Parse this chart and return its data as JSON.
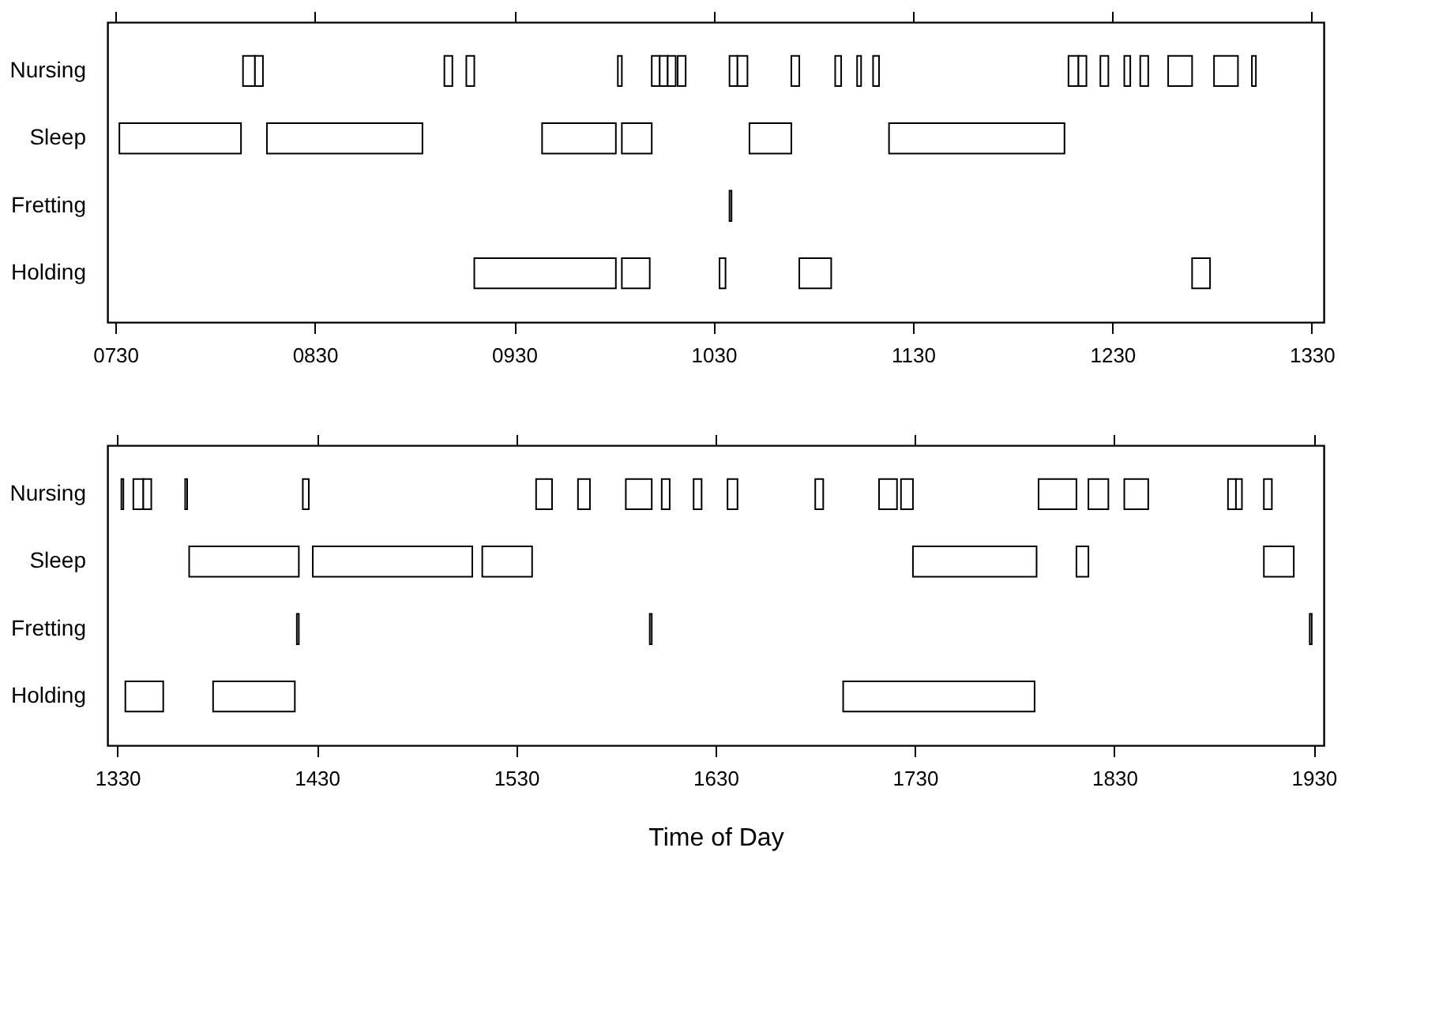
{
  "chart_data": [
    {
      "type": "bar",
      "orientation": "horizontal",
      "categories": [
        "Nursing",
        "Sleep",
        "Fretting",
        "Holding"
      ],
      "xlim": [
        726,
        1336
      ],
      "xticks": [
        {
          "value": 730,
          "label": "0730"
        },
        {
          "value": 830,
          "label": "0830"
        },
        {
          "value": 930,
          "label": "0930"
        },
        1030,
        1130,
        1230,
        1330
      ],
      "series": [
        {
          "color": "#ffffff",
          "base": [
            794,
            732,
            1038,
            910
          ],
          "values": [
            6,
            61,
            1,
            71
          ]
        },
        {
          "color": "#ffffff",
          "base": [
            800,
            806,
            null,
            984
          ],
          "values": [
            4,
            78,
            null,
            14
          ]
        },
        {
          "color": "#ffffff",
          "base": [
            895,
            944,
            null,
            1033
          ],
          "values": [
            4,
            37,
            null,
            3
          ]
        },
        {
          "color": "#ffffff",
          "base": [
            906,
            984,
            null,
            1073
          ],
          "values": [
            4,
            15,
            null,
            16
          ]
        },
        {
          "color": "#ffffff",
          "base": [
            982,
            1048,
            null,
            1270
          ],
          "values": [
            2,
            21,
            null,
            9
          ]
        },
        {
          "color": "#ffffff",
          "base": [
            999,
            1118,
            null,
            null
          ],
          "values": [
            4,
            88,
            null,
            null
          ]
        },
        {
          "color": "#ffffff",
          "base": [
            1003,
            null,
            null,
            null
          ],
          "values": [
            4,
            null,
            null,
            null
          ]
        },
        {
          "color": "#ffffff",
          "base": [
            1007,
            null,
            null,
            null
          ],
          "values": [
            4,
            null,
            null,
            null
          ]
        },
        {
          "color": "#ffffff",
          "base": [
            1012,
            null,
            null,
            null
          ],
          "values": [
            4,
            null,
            null,
            null
          ]
        },
        {
          "color": "#ffffff",
          "base": [
            1038,
            null,
            null,
            null
          ],
          "values": [
            4,
            null,
            null,
            null
          ]
        },
        {
          "color": "#ffffff",
          "base": [
            1042,
            null,
            null,
            null
          ],
          "values": [
            5,
            null,
            null,
            null
          ]
        },
        {
          "color": "#ffffff",
          "base": [
            1069,
            null,
            null,
            null
          ],
          "values": [
            4,
            null,
            null,
            null
          ]
        },
        {
          "color": "#ffffff",
          "base": [
            1091,
            null,
            null,
            null
          ],
          "values": [
            3,
            null,
            null,
            null
          ]
        },
        {
          "color": "#ffffff",
          "base": [
            1102,
            null,
            null,
            null
          ],
          "values": [
            2,
            null,
            null,
            null
          ]
        },
        {
          "color": "#ffffff",
          "base": [
            1110,
            null,
            null,
            null
          ],
          "values": [
            3,
            null,
            null,
            null
          ]
        },
        {
          "color": "#ffffff",
          "base": [
            1208,
            null,
            null,
            null
          ],
          "values": [
            5,
            null,
            null,
            null
          ]
        },
        {
          "color": "#ffffff",
          "base": [
            1213,
            null,
            null,
            null
          ],
          "values": [
            4,
            null,
            null,
            null
          ]
        },
        {
          "color": "#ffffff",
          "base": [
            1224,
            null,
            null,
            null
          ],
          "values": [
            4,
            null,
            null,
            null
          ]
        },
        {
          "color": "#ffffff",
          "base": [
            1236,
            null,
            null,
            null
          ],
          "values": [
            3,
            null,
            null,
            null
          ]
        },
        {
          "color": "#ffffff",
          "base": [
            1244,
            null,
            null,
            null
          ],
          "values": [
            4,
            null,
            null,
            null
          ]
        },
        {
          "color": "#ffffff",
          "base": [
            1258,
            null,
            null,
            null
          ],
          "values": [
            12,
            null,
            null,
            null
          ]
        },
        {
          "color": "#ffffff",
          "base": [
            1281,
            null,
            null,
            null
          ],
          "values": [
            12,
            null,
            null,
            null
          ]
        },
        {
          "color": "#ffffff",
          "base": [
            1300,
            null,
            null,
            null
          ],
          "values": [
            2,
            null,
            null,
            null
          ]
        }
      ]
    },
    {
      "type": "bar",
      "orientation": "horizontal",
      "categories": [
        "Nursing",
        "Sleep",
        "Fretting",
        "Holding"
      ],
      "xlabel": "Time of Day",
      "xlim": [
        1325,
        1935
      ],
      "xticks": [
        1330,
        1430,
        1530,
        1630,
        1730,
        1830,
        1930
      ],
      "series": [
        {
          "color": "#ffffff",
          "base": [
            1332,
            1366,
            1420,
            1334
          ],
          "values": [
            1,
            55,
            1,
            19
          ]
        },
        {
          "color": "#ffffff",
          "base": [
            1338,
            1428,
            1597,
            1378
          ],
          "values": [
            5,
            80,
            1,
            41
          ]
        },
        {
          "color": "#ffffff",
          "base": [
            1343,
            1513,
            1928,
            1694
          ],
          "values": [
            4,
            25,
            1,
            96
          ]
        },
        {
          "color": "#ffffff",
          "base": [
            1364,
            1729,
            null,
            null
          ],
          "values": [
            1,
            62,
            null,
            null
          ]
        },
        {
          "color": "#ffffff",
          "base": [
            1423,
            1811,
            null,
            null
          ],
          "values": [
            3,
            6,
            null,
            null
          ]
        },
        {
          "color": "#ffffff",
          "base": [
            1540,
            1905,
            null,
            null
          ],
          "values": [
            8,
            15,
            null,
            null
          ]
        },
        {
          "color": "#ffffff",
          "base": [
            1561,
            null,
            null,
            null
          ],
          "values": [
            6,
            null,
            null,
            null
          ]
        },
        {
          "color": "#ffffff",
          "base": [
            1585,
            null,
            null,
            null
          ],
          "values": [
            13,
            null,
            null,
            null
          ]
        },
        {
          "color": "#ffffff",
          "base": [
            1603,
            null,
            null,
            null
          ],
          "values": [
            4,
            null,
            null,
            null
          ]
        },
        {
          "color": "#ffffff",
          "base": [
            1619,
            null,
            null,
            null
          ],
          "values": [
            4,
            null,
            null,
            null
          ]
        },
        {
          "color": "#ffffff",
          "base": [
            1636,
            null,
            null,
            null
          ],
          "values": [
            5,
            null,
            null,
            null
          ]
        },
        {
          "color": "#ffffff",
          "base": [
            1680,
            null,
            null,
            null
          ],
          "values": [
            4,
            null,
            null,
            null
          ]
        },
        {
          "color": "#ffffff",
          "base": [
            1712,
            null,
            null,
            null
          ],
          "values": [
            9,
            null,
            null,
            null
          ]
        },
        {
          "color": "#ffffff",
          "base": [
            1723,
            null,
            null,
            null
          ],
          "values": [
            6,
            null,
            null,
            null
          ]
        },
        {
          "color": "#ffffff",
          "base": [
            1792,
            null,
            null,
            null
          ],
          "values": [
            19,
            null,
            null,
            null
          ]
        },
        {
          "color": "#ffffff",
          "base": [
            1817,
            null,
            null,
            null
          ],
          "values": [
            10,
            null,
            null,
            null
          ]
        },
        {
          "color": "#ffffff",
          "base": [
            1835,
            null,
            null,
            null
          ],
          "values": [
            12,
            null,
            null,
            null
          ]
        },
        {
          "color": "#ffffff",
          "base": [
            1887,
            null,
            null,
            null
          ],
          "values": [
            4,
            null,
            null,
            null
          ]
        },
        {
          "color": "#ffffff",
          "base": [
            1891,
            null,
            null,
            null
          ],
          "values": [
            3,
            null,
            null,
            null
          ]
        },
        {
          "color": "#ffffff",
          "base": [
            1905,
            null,
            null,
            null
          ],
          "values": [
            4,
            null,
            null,
            null
          ]
        }
      ]
    }
  ]
}
